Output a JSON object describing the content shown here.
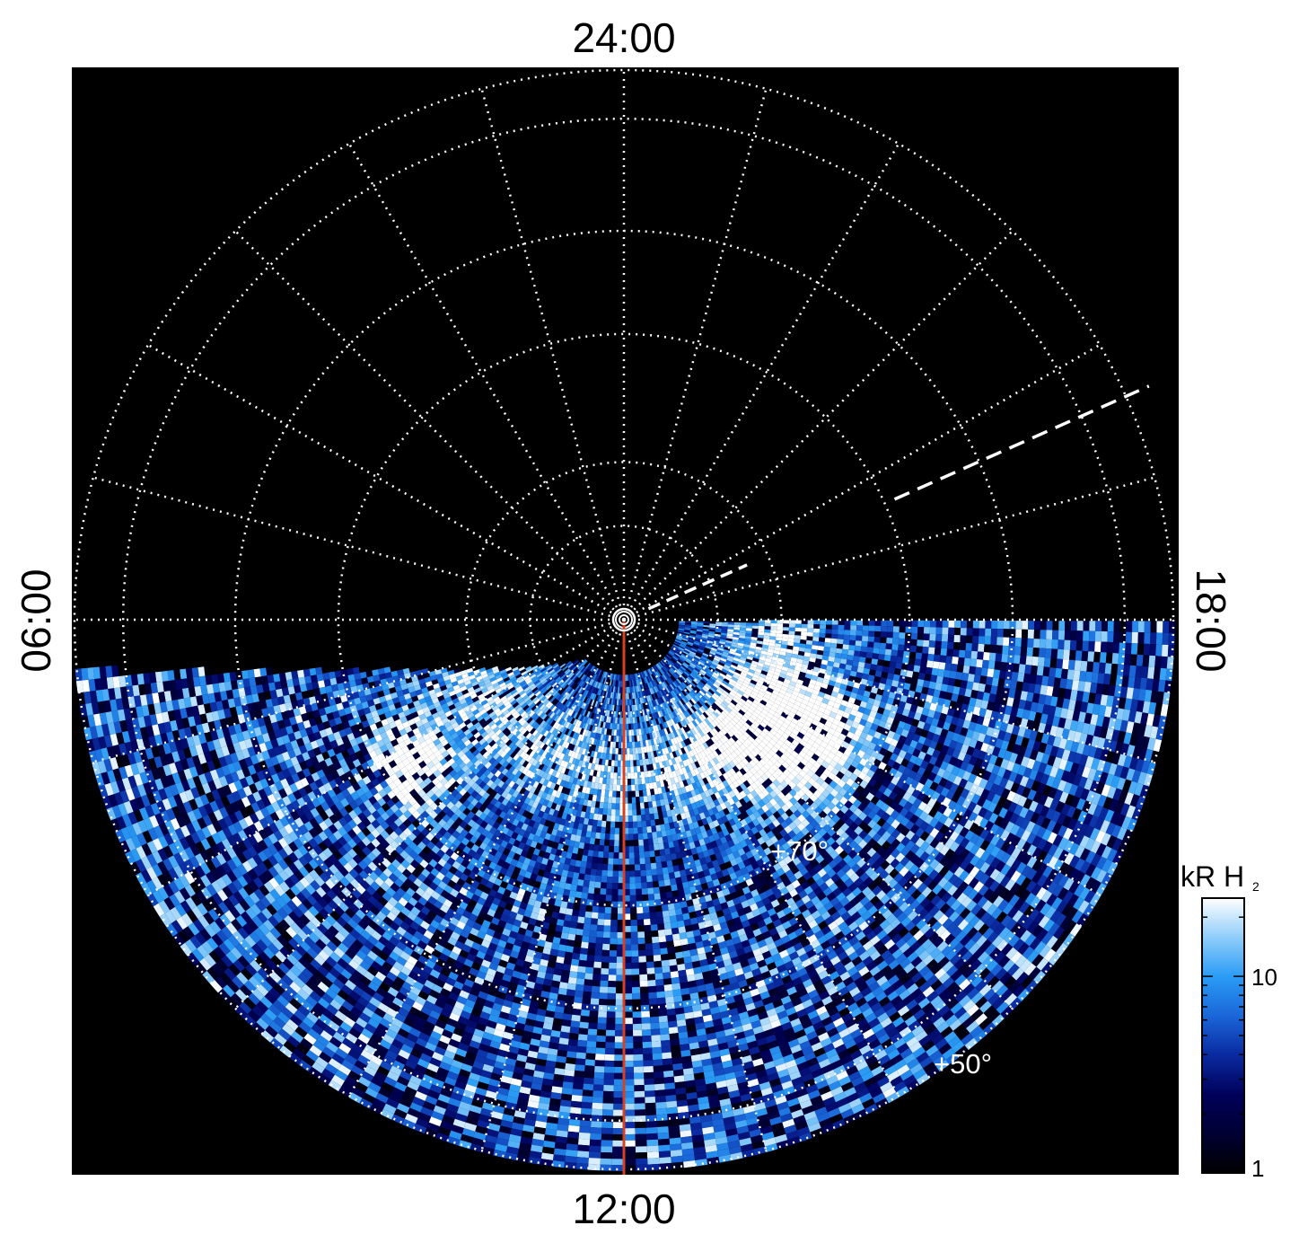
{
  "chart_data": {
    "type": "heatmap",
    "projection": "polar (local time / latitude)",
    "local_time_labels": {
      "top": "24:00",
      "bottom": "12:00",
      "left": "06:00",
      "right": "18:00"
    },
    "latitude_labels": [
      "+70°",
      "+50°"
    ],
    "meridian_spacing_hours": 1,
    "latitude_circles_deg": [
      80,
      70,
      60,
      50,
      40
    ],
    "colorbar": {
      "title_main": "kR H",
      "title_sub": "2",
      "scale": "log",
      "range": [
        1,
        25
      ],
      "tick_labels": [
        "1",
        "10"
      ],
      "tick_values": [
        1,
        10
      ],
      "colors": [
        "#000000",
        "#000033",
        "#00005a",
        "#0a2aa0",
        "#1a66d9",
        "#2a9cf5",
        "#8fcdfa",
        "#ffffff"
      ]
    },
    "meridian_highlight": {
      "local_time": "12:00",
      "color": "#d9401e"
    },
    "dashed_line": {
      "local_time": "~17:00",
      "style": "dashed",
      "color": "#ffffff"
    },
    "background": "#000000",
    "grid": "dotted white",
    "data_coverage": "dayside hemisphere (06:00–12:00–18:00), below pole"
  }
}
